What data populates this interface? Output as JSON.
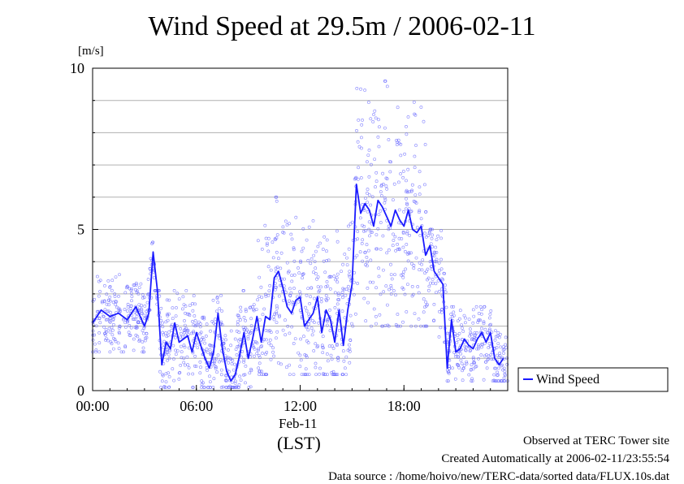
{
  "title": "Wind Speed at 29.5m / 2006-02-11",
  "unit_label": "[m/s]",
  "x_axis": {
    "date_label": "Feb-11",
    "tz_label": "(LST)"
  },
  "footer": {
    "line1": "Observed at TERC Tower site",
    "line2": "Created Automatically at 2006-02-11/23:55:54",
    "line3": "Data source : /home/hoivo/new/TERC-data/sorted  data/FLUX.10s.dat"
  },
  "colors": {
    "series": "#1a1aff",
    "points": "#6f6fff",
    "grid": "#b0b0b0"
  },
  "chart_data": {
    "type": "line",
    "title": "Wind Speed at 29.5m / 2006-02-11",
    "ylabel": "[m/s]",
    "xlabel": "(LST)",
    "xlim": [
      0,
      24
    ],
    "ylim": [
      0,
      10
    ],
    "x_ticks": [
      {
        "value": 0,
        "label": "00:00"
      },
      {
        "value": 6,
        "label": "06:00"
      },
      {
        "value": 12,
        "label": "12:00"
      },
      {
        "value": 18,
        "label": "18:00"
      }
    ],
    "y_ticks": [
      {
        "value": 0,
        "label": "0"
      },
      {
        "value": 5,
        "label": "5"
      },
      {
        "value": 10,
        "label": "10"
      }
    ],
    "grid": true,
    "legend": {
      "placement": "right",
      "entries": [
        "Wind Speed"
      ]
    },
    "series": [
      {
        "name": "Wind Speed",
        "x": [
          0.0,
          0.5,
          1.0,
          1.5,
          2.0,
          2.5,
          3.0,
          3.25,
          3.5,
          3.75,
          4.0,
          4.25,
          4.5,
          4.75,
          5.0,
          5.25,
          5.5,
          5.75,
          6.0,
          6.25,
          6.5,
          6.75,
          7.0,
          7.25,
          7.5,
          7.75,
          8.0,
          8.25,
          8.5,
          8.75,
          9.0,
          9.25,
          9.5,
          9.75,
          10.0,
          10.25,
          10.5,
          10.75,
          11.0,
          11.25,
          11.5,
          11.75,
          12.0,
          12.25,
          12.5,
          12.75,
          13.0,
          13.25,
          13.5,
          13.75,
          14.0,
          14.25,
          14.5,
          14.75,
          15.0,
          15.25,
          15.5,
          15.75,
          16.0,
          16.25,
          16.5,
          16.75,
          17.0,
          17.25,
          17.5,
          17.75,
          18.0,
          18.25,
          18.5,
          18.75,
          19.0,
          19.25,
          19.5,
          19.75,
          20.0,
          20.25,
          20.5,
          20.75,
          21.0,
          21.25,
          21.5,
          21.75,
          22.0,
          22.25,
          22.5,
          22.75,
          23.0,
          23.25,
          23.5,
          23.75
        ],
        "y": [
          2.1,
          2.5,
          2.3,
          2.4,
          2.2,
          2.6,
          2.0,
          2.4,
          4.3,
          3.1,
          0.8,
          1.5,
          1.3,
          2.1,
          1.5,
          1.6,
          1.7,
          1.2,
          1.8,
          1.4,
          1.0,
          0.7,
          1.2,
          2.4,
          1.3,
          0.6,
          0.3,
          0.5,
          1.1,
          1.8,
          1.0,
          1.6,
          2.3,
          1.5,
          2.3,
          2.2,
          3.5,
          3.7,
          3.2,
          2.6,
          2.4,
          2.8,
          2.9,
          2.0,
          2.2,
          2.4,
          2.9,
          1.8,
          2.5,
          2.2,
          1.5,
          2.5,
          1.4,
          2.5,
          3.3,
          6.4,
          5.5,
          5.8,
          5.6,
          5.1,
          5.9,
          5.7,
          5.4,
          5.1,
          5.6,
          5.3,
          5.1,
          5.6,
          5.0,
          4.9,
          5.1,
          4.2,
          4.5,
          3.7,
          3.5,
          3.3,
          0.7,
          2.2,
          1.2,
          1.3,
          1.6,
          1.4,
          1.3,
          1.6,
          1.8,
          1.5,
          1.8,
          1.0,
          0.8,
          1.0
        ]
      }
    ],
    "scatter_spread": [
      {
        "x_range": [
          0,
          3.2
        ],
        "low": 1.2,
        "high": 3.6
      },
      {
        "x_range": [
          3.2,
          3.6
        ],
        "low": 2.5,
        "high": 4.6
      },
      {
        "x_range": [
          3.6,
          9.5
        ],
        "low": 0.1,
        "high": 3.1
      },
      {
        "x_range": [
          9.5,
          11.0
        ],
        "low": 0.5,
        "high": 6.0
      },
      {
        "x_range": [
          11.0,
          15.0
        ],
        "low": 0.5,
        "high": 5.5
      },
      {
        "x_range": [
          15.0,
          19.5
        ],
        "low": 2.0,
        "high": 9.6
      },
      {
        "x_range": [
          19.5,
          20.5
        ],
        "low": 1.5,
        "high": 5.0
      },
      {
        "x_range": [
          20.5,
          24.0
        ],
        "low": 0.3,
        "high": 2.6
      }
    ]
  }
}
